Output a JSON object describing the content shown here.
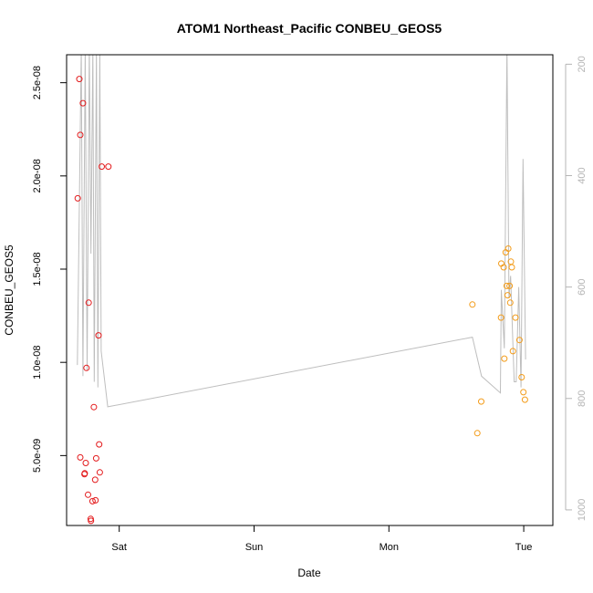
{
  "chart_data": {
    "type": "scatter",
    "title": "ATOM1 Northeast_Pacific CONBEU_GEOS5",
    "xlabel": "Date",
    "ylabel": "CONBEU_GEOS5",
    "x_ticks": [
      "Sat",
      "Sun",
      "Mon",
      "Tue"
    ],
    "y_ticks": [
      "5.0e-09",
      "1.0e-08",
      "1.5e-08",
      "2.0e-08",
      "2.5e-08"
    ],
    "y_tick_values": [
      5e-09,
      1e-08,
      1.5e-08,
      2e-08,
      2.5e-08
    ],
    "right_axis_ticks": [
      "200",
      "400",
      "600",
      "800",
      "1000"
    ],
    "right_axis_values": [
      200,
      400,
      600,
      800,
      1000
    ],
    "xlim": [
      "2016-07-29 14:38",
      "2016-08-02 05:11"
    ],
    "ylim": [
      1.25e-09,
      2.65e-08
    ],
    "right_ylim": [
      183,
      1028
    ],
    "right_axis_reversed": true,
    "grid": false,
    "colors": {
      "series1": "#e31a1c",
      "series2": "#f39c1a",
      "pressure_line": "#bebebe",
      "right_axis": "#b5b5b5"
    },
    "series": [
      {
        "color": "#e31a1c",
        "points": [
          {
            "x": "2016-07-29 16:37",
            "y": 1.88e-08
          },
          {
            "x": "2016-07-29 16:54",
            "y": 2.52e-08
          },
          {
            "x": "2016-07-29 17:04",
            "y": 2.22e-08
          },
          {
            "x": "2016-07-29 17:04",
            "y": 4.9e-09
          },
          {
            "x": "2016-07-29 17:32",
            "y": 2.39e-08
          },
          {
            "x": "2016-07-29 17:49",
            "y": 4e-09
          },
          {
            "x": "2016-07-29 17:52",
            "y": 4.05e-09
          },
          {
            "x": "2016-07-29 18:03",
            "y": 4.6e-09
          },
          {
            "x": "2016-07-29 18:10",
            "y": 9.7e-09
          },
          {
            "x": "2016-07-29 18:27",
            "y": 2.9e-09
          },
          {
            "x": "2016-07-29 18:34",
            "y": 1.32e-08
          },
          {
            "x": "2016-07-29 18:55",
            "y": 1.6e-09
          },
          {
            "x": "2016-07-29 18:58",
            "y": 1.5e-09
          },
          {
            "x": "2016-07-29 19:15",
            "y": 2.55e-09
          },
          {
            "x": "2016-07-29 19:29",
            "y": 7.6e-09
          },
          {
            "x": "2016-07-29 19:43",
            "y": 3.7e-09
          },
          {
            "x": "2016-07-29 19:47",
            "y": 2.6e-09
          },
          {
            "x": "2016-07-29 19:54",
            "y": 4.85e-09
          },
          {
            "x": "2016-07-29 20:19",
            "y": 1.145e-08
          },
          {
            "x": "2016-07-29 20:26",
            "y": 5.6e-09
          },
          {
            "x": "2016-07-29 20:33",
            "y": 4.1e-09
          },
          {
            "x": "2016-07-29 20:53",
            "y": 2.05e-08
          },
          {
            "x": "2016-07-29 22:04",
            "y": 2.05e-08
          }
        ]
      },
      {
        "color": "#f39c1a",
        "points": [
          {
            "x": "2016-08-01 14:52",
            "y": 1.31e-08
          },
          {
            "x": "2016-08-01 15:44",
            "y": 6.2e-09
          },
          {
            "x": "2016-08-01 16:26",
            "y": 7.9e-09
          },
          {
            "x": "2016-08-01 19:58",
            "y": 1.24e-08
          },
          {
            "x": "2016-08-01 20:01",
            "y": 1.53e-08
          },
          {
            "x": "2016-08-01 20:26",
            "y": 1.51e-08
          },
          {
            "x": "2016-08-01 20:33",
            "y": 1.02e-08
          },
          {
            "x": "2016-08-01 20:47",
            "y": 1.59e-08
          },
          {
            "x": "2016-08-01 20:58",
            "y": 1.41e-08
          },
          {
            "x": "2016-08-01 21:08",
            "y": 1.36e-08
          },
          {
            "x": "2016-08-01 21:15",
            "y": 1.61e-08
          },
          {
            "x": "2016-08-01 21:29",
            "y": 1.41e-08
          },
          {
            "x": "2016-08-01 21:36",
            "y": 1.32e-08
          },
          {
            "x": "2016-08-01 21:43",
            "y": 1.54e-08
          },
          {
            "x": "2016-08-01 21:53",
            "y": 1.51e-08
          },
          {
            "x": "2016-08-01 22:04",
            "y": 1.06e-08
          },
          {
            "x": "2016-08-01 22:32",
            "y": 1.24e-08
          },
          {
            "x": "2016-08-01 23:14",
            "y": 1.12e-08
          },
          {
            "x": "2016-08-01 23:38",
            "y": 9.2e-09
          },
          {
            "x": "2016-08-01 23:56",
            "y": 8.4e-09
          },
          {
            "x": "2016-08-02 00:13",
            "y": 8e-09
          }
        ]
      }
    ],
    "pressure_line": [
      {
        "x": "2016-07-29 16:33",
        "y": 740
      },
      {
        "x": "2016-07-29 17:15",
        "y": 170
      },
      {
        "x": "2016-07-29 17:32",
        "y": 760
      },
      {
        "x": "2016-07-29 17:57",
        "y": 170
      },
      {
        "x": "2016-07-29 18:17",
        "y": 750
      },
      {
        "x": "2016-07-29 18:41",
        "y": 170
      },
      {
        "x": "2016-07-29 18:58",
        "y": 540
      },
      {
        "x": "2016-07-29 19:19",
        "y": 170
      },
      {
        "x": "2016-07-29 19:33",
        "y": 770
      },
      {
        "x": "2016-07-29 19:57",
        "y": 170
      },
      {
        "x": "2016-07-29 20:12",
        "y": 780
      },
      {
        "x": "2016-07-29 20:33",
        "y": 170
      },
      {
        "x": "2016-07-29 20:47",
        "y": 715
      },
      {
        "x": "2016-07-29 21:57",
        "y": 815
      },
      {
        "x": "2016-08-01 14:52",
        "y": 690
      },
      {
        "x": "2016-08-01 16:29",
        "y": 760
      },
      {
        "x": "2016-08-01 19:51",
        "y": 790
      },
      {
        "x": "2016-08-01 20:01",
        "y": 605
      },
      {
        "x": "2016-08-01 20:33",
        "y": 710
      },
      {
        "x": "2016-08-01 21:01",
        "y": 170
      },
      {
        "x": "2016-08-01 21:22",
        "y": 620
      },
      {
        "x": "2016-08-01 21:40",
        "y": 580
      },
      {
        "x": "2016-08-01 22:18",
        "y": 770
      },
      {
        "x": "2016-08-01 22:39",
        "y": 770
      },
      {
        "x": "2016-08-01 23:07",
        "y": 600
      },
      {
        "x": "2016-08-01 23:31",
        "y": 780
      },
      {
        "x": "2016-08-01 23:52",
        "y": 370
      },
      {
        "x": "2016-08-02 00:20",
        "y": 730
      }
    ]
  }
}
